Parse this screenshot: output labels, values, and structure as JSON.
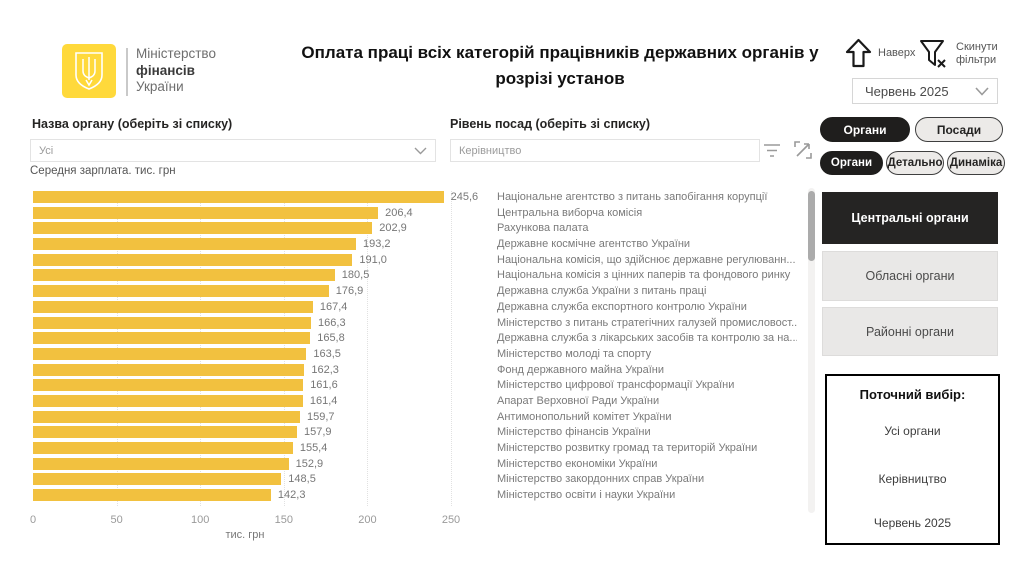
{
  "header": {
    "logo": {
      "line1": "Міністерство",
      "line2": "фінансів",
      "line3": "України"
    },
    "title": "Оплата праці всіх категорій працівників державних органів у розрізі установ",
    "nav_up_label": "Наверх",
    "reset_filters_label_line1": "Скинути",
    "reset_filters_label_line2": "фільтри",
    "month_selector": {
      "value": "Червень 2025"
    }
  },
  "toggles": {
    "row1": [
      {
        "label": "Органи",
        "active": true
      },
      {
        "label": "Посади",
        "active": false
      }
    ],
    "row2": [
      {
        "label": "Органи",
        "active": true
      },
      {
        "label": "Детально",
        "active": false
      },
      {
        "label": "Динаміка",
        "active": false
      }
    ]
  },
  "filters": {
    "organ": {
      "label": "Назва органу (оберіть зі списку)",
      "value": "Усі"
    },
    "position": {
      "label": "Рівень посад (оберіть зі списку)",
      "value": "Керівництво"
    }
  },
  "chart_data": {
    "type": "bar",
    "orientation": "horizontal",
    "title": "Середня зарплата. тис. грн",
    "xlabel": "тис. грн",
    "xlim": [
      0,
      250
    ],
    "xticks": [
      0,
      50,
      100,
      150,
      200,
      250
    ],
    "grid": "dotted-vertical",
    "categories": [
      "Національне агентство з питань запобігання корупції",
      "Центральна виборча комісія",
      "Рахункова палата",
      "Державне космічне агентство України",
      "Національна комісія, що здійснює державне регулюванн...",
      "Національна комісія з цінних паперів та фондового ринку",
      "Державна служба України з питань праці",
      "Державна служба експортного контролю України",
      "Міністерство з питань стратегічних галузей промисловост...",
      "Державна служба з лікарських засобів та контролю за на...",
      "Міністерство молоді та спорту",
      "Фонд державного майна України",
      "Міністерство цифрової трансформації України",
      "Апарат Верховної Ради України",
      "Антимонопольний комітет України",
      "Міністерство фінансів України",
      "Міністерство розвитку громад та територій України",
      "Міністерство економіки України",
      "Міністерство закордонних справ України",
      "Міністерство освіти і науки України"
    ],
    "values": [
      245.6,
      206.4,
      202.9,
      193.2,
      191.0,
      180.5,
      176.9,
      167.4,
      166.3,
      165.8,
      163.5,
      162.3,
      161.6,
      161.4,
      159.7,
      157.9,
      155.4,
      152.9,
      148.5,
      142.3
    ],
    "value_labels": [
      "245,6",
      "206,4",
      "202,9",
      "193,2",
      "191,0",
      "180,5",
      "176,9",
      "167,4",
      "166,3",
      "165,8",
      "163,5",
      "162,3",
      "161,6",
      "161,4",
      "159,7",
      "157,9",
      "155,4",
      "152,9",
      "148,5",
      "142,3"
    ]
  },
  "sidebar": {
    "region_buttons": [
      {
        "label": "Центральні органи",
        "active": true
      },
      {
        "label": "Обласні органи",
        "active": false
      },
      {
        "label": "Районні органи",
        "active": false
      }
    ],
    "current_selection": {
      "title": "Поточний вибір:",
      "items": [
        "Усі органи",
        "Керівництво",
        "Червень 2025"
      ]
    }
  },
  "colors": {
    "bar": "#F2C13F",
    "logo_yellow": "#FFD93B",
    "accent_dark": "#252423"
  }
}
